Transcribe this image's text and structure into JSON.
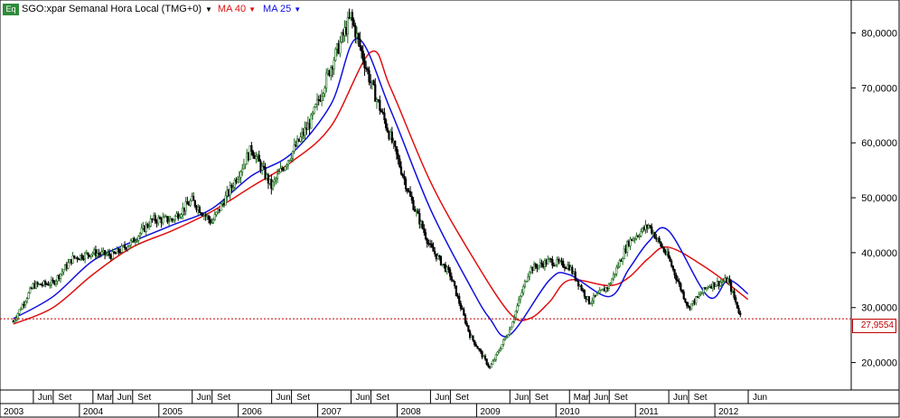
{
  "header": {
    "badge": "Eq",
    "symbol_label": "SGO:xpar Semanal Hora Local (TMG+0)",
    "ma40_label": "MA 40",
    "ma25_label": "MA 25"
  },
  "last_price_label": "27,9554",
  "colors": {
    "ma40": "#e01010",
    "ma25": "#1010e0",
    "up_candle": "#1a6b1a",
    "down_candle": "#000000",
    "last_price_line": "#c00000",
    "badge": "#2e8b3a"
  },
  "chart_data": {
    "type": "candlestick",
    "timeframe": "weekly",
    "y_ticks": [
      "20,0000",
      "30,0000",
      "40,0000",
      "50,0000",
      "60,0000",
      "70,0000",
      "80,0000"
    ],
    "ylim": [
      15,
      86
    ],
    "x_month_ticks": [
      "Jun",
      "Set",
      "Mar",
      "Jun",
      "Set",
      "Jun",
      "Set",
      "Jun",
      "Set",
      "Jun",
      "Set",
      "Jun",
      "Set",
      "Jun",
      "Set",
      "Mar",
      "Jun",
      "Set",
      "Jun",
      "Set",
      "Jun"
    ],
    "x_year_ticks": [
      "2003",
      "2004",
      "2005",
      "2006",
      "2007",
      "2008",
      "2009",
      "2010",
      "2011",
      "2012"
    ],
    "last_price": 27.9554,
    "price_path": [
      {
        "t": "2003-03",
        "close": 27.5
      },
      {
        "t": "2003-06",
        "close": 34
      },
      {
        "t": "2003-09",
        "close": 34.5
      },
      {
        "t": "2003-12",
        "close": 39
      },
      {
        "t": "2004-03",
        "close": 40
      },
      {
        "t": "2004-06",
        "close": 39.5
      },
      {
        "t": "2004-09",
        "close": 42
      },
      {
        "t": "2004-12",
        "close": 46
      },
      {
        "t": "2005-03",
        "close": 46
      },
      {
        "t": "2005-06",
        "close": 49.5
      },
      {
        "t": "2005-09",
        "close": 45.5
      },
      {
        "t": "2005-12",
        "close": 52
      },
      {
        "t": "2006-03",
        "close": 59
      },
      {
        "t": "2006-06",
        "close": 52
      },
      {
        "t": "2006-09",
        "close": 58
      },
      {
        "t": "2006-12",
        "close": 64
      },
      {
        "t": "2007-03",
        "close": 74
      },
      {
        "t": "2007-06",
        "close": 83
      },
      {
        "t": "2007-09",
        "close": 71
      },
      {
        "t": "2007-12",
        "close": 61
      },
      {
        "t": "2008-03",
        "close": 50
      },
      {
        "t": "2008-06",
        "close": 41
      },
      {
        "t": "2008-09",
        "close": 36
      },
      {
        "t": "2008-12",
        "close": 25
      },
      {
        "t": "2009-03",
        "close": 19
      },
      {
        "t": "2009-06",
        "close": 26
      },
      {
        "t": "2009-09",
        "close": 37
      },
      {
        "t": "2009-12",
        "close": 38.5
      },
      {
        "t": "2010-03",
        "close": 37.5
      },
      {
        "t": "2010-06",
        "close": 31
      },
      {
        "t": "2010-09",
        "close": 34
      },
      {
        "t": "2010-12",
        "close": 42
      },
      {
        "t": "2011-03",
        "close": 45
      },
      {
        "t": "2011-06",
        "close": 39
      },
      {
        "t": "2011-09",
        "close": 30
      },
      {
        "t": "2011-12",
        "close": 34
      },
      {
        "t": "2012-03",
        "close": 35
      },
      {
        "t": "2012-05",
        "close": 28
      }
    ],
    "ma40": [
      {
        "t": "2003-03",
        "v": 27
      },
      {
        "t": "2003-09",
        "v": 30
      },
      {
        "t": "2004-03",
        "v": 36
      },
      {
        "t": "2004-09",
        "v": 41
      },
      {
        "t": "2005-03",
        "v": 44
      },
      {
        "t": "2005-09",
        "v": 47.5
      },
      {
        "t": "2006-03",
        "v": 52
      },
      {
        "t": "2006-09",
        "v": 56.5
      },
      {
        "t": "2007-03",
        "v": 63
      },
      {
        "t": "2007-09",
        "v": 76.5
      },
      {
        "t": "2007-12",
        "v": 70
      },
      {
        "t": "2008-06",
        "v": 53
      },
      {
        "t": "2008-12",
        "v": 40
      },
      {
        "t": "2009-06",
        "v": 29
      },
      {
        "t": "2009-09",
        "v": 28
      },
      {
        "t": "2009-12",
        "v": 31
      },
      {
        "t": "2010-03",
        "v": 35
      },
      {
        "t": "2010-09",
        "v": 34
      },
      {
        "t": "2010-12",
        "v": 35.5
      },
      {
        "t": "2011-03",
        "v": 39
      },
      {
        "t": "2011-06",
        "v": 41
      },
      {
        "t": "2011-12",
        "v": 37
      },
      {
        "t": "2012-06",
        "v": 31.5
      }
    ],
    "ma25": [
      {
        "t": "2003-03",
        "v": 28
      },
      {
        "t": "2003-09",
        "v": 32
      },
      {
        "t": "2004-03",
        "v": 38.5
      },
      {
        "t": "2004-09",
        "v": 42
      },
      {
        "t": "2005-03",
        "v": 45
      },
      {
        "t": "2005-09",
        "v": 48
      },
      {
        "t": "2006-03",
        "v": 54
      },
      {
        "t": "2006-09",
        "v": 58
      },
      {
        "t": "2007-03",
        "v": 67
      },
      {
        "t": "2007-07",
        "v": 79
      },
      {
        "t": "2007-12",
        "v": 66
      },
      {
        "t": "2008-06",
        "v": 48
      },
      {
        "t": "2008-12",
        "v": 34
      },
      {
        "t": "2009-03",
        "v": 28
      },
      {
        "t": "2009-06",
        "v": 25
      },
      {
        "t": "2009-12",
        "v": 35
      },
      {
        "t": "2010-03",
        "v": 36
      },
      {
        "t": "2010-09",
        "v": 32
      },
      {
        "t": "2010-12",
        "v": 37
      },
      {
        "t": "2011-03",
        "v": 42
      },
      {
        "t": "2011-06",
        "v": 44
      },
      {
        "t": "2011-12",
        "v": 32
      },
      {
        "t": "2012-03",
        "v": 35
      },
      {
        "t": "2012-06",
        "v": 32.5
      }
    ]
  }
}
